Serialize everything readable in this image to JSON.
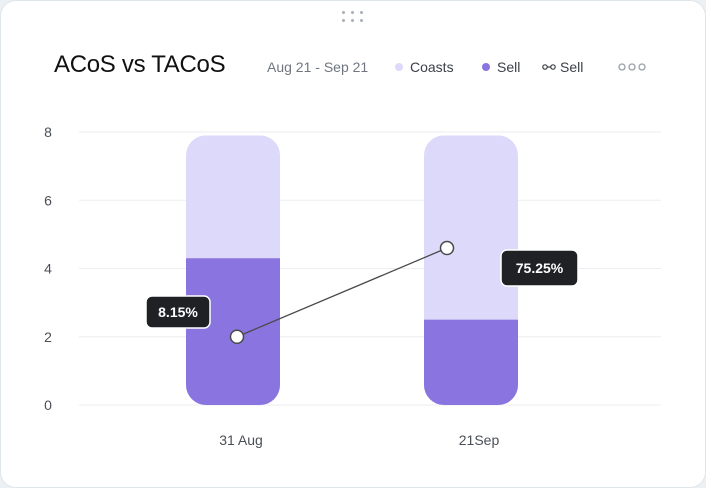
{
  "header": {
    "title": "ACoS vs TACoS",
    "date_range": "Aug 21 - Sep 21",
    "more_icon": "more-horizontal-icon",
    "drag_icon": "drag-handle-icon"
  },
  "legend": [
    {
      "label": "Coasts",
      "marker": "dot",
      "color": "#ddd9fa"
    },
    {
      "label": "Sell",
      "marker": "dot",
      "color": "#8a74e0"
    },
    {
      "label": "Sell",
      "marker": "line-with-markers",
      "color": "#3c4047"
    }
  ],
  "colors": {
    "coasts": "#ddd9fa",
    "sell": "#8a74e0",
    "line": "#4a4a4a",
    "label_bg": "#1f2124",
    "grid": "#eceef1",
    "axis_text": "#4a4f57"
  },
  "chart_data": {
    "type": "bar",
    "categories": [
      "31 Aug",
      "21Sep"
    ],
    "ylim": [
      0,
      8
    ],
    "yticks": [
      0,
      2,
      4,
      6,
      8
    ],
    "grid": true,
    "series": [
      {
        "name": "Coasts",
        "kind": "bar-stack-total",
        "values": [
          7.9,
          7.9
        ]
      },
      {
        "name": "Sell",
        "kind": "bar",
        "values": [
          4.3,
          2.5
        ]
      },
      {
        "name": "Sell",
        "kind": "line",
        "values": [
          2.0,
          4.6
        ],
        "labels": [
          "8.15%",
          "75.25%"
        ]
      }
    ],
    "title": "ACoS vs TACoS",
    "xlabel": "",
    "ylabel": ""
  }
}
